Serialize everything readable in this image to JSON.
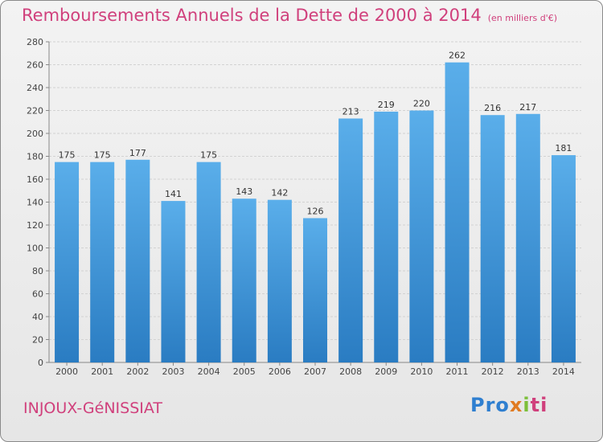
{
  "title": "Remboursements Annuels de la Dette de 2000 à 2014",
  "unit_note": "(en milliers d'€)",
  "location": "INJOUX-GéNISSIAT",
  "logo": [
    "Pro",
    "x",
    "i",
    "ti"
  ],
  "colors": {
    "bar": "#3d8fd8",
    "title": "#d0407c"
  },
  "chart_data": {
    "type": "bar",
    "title": "Remboursements Annuels de la Dette de 2000 à 2014",
    "xlabel": "",
    "ylabel": "",
    "categories": [
      "2000",
      "2001",
      "2002",
      "2003",
      "2004",
      "2005",
      "2006",
      "2007",
      "2008",
      "2009",
      "2010",
      "2011",
      "2012",
      "2013",
      "2014"
    ],
    "values": [
      175,
      175,
      177,
      141,
      175,
      143,
      142,
      126,
      213,
      219,
      220,
      262,
      216,
      217,
      181
    ],
    "ylim": [
      0,
      280
    ],
    "yticks": [
      0,
      20,
      40,
      60,
      80,
      100,
      120,
      140,
      160,
      180,
      200,
      220,
      240,
      260,
      280
    ],
    "grid": true
  }
}
